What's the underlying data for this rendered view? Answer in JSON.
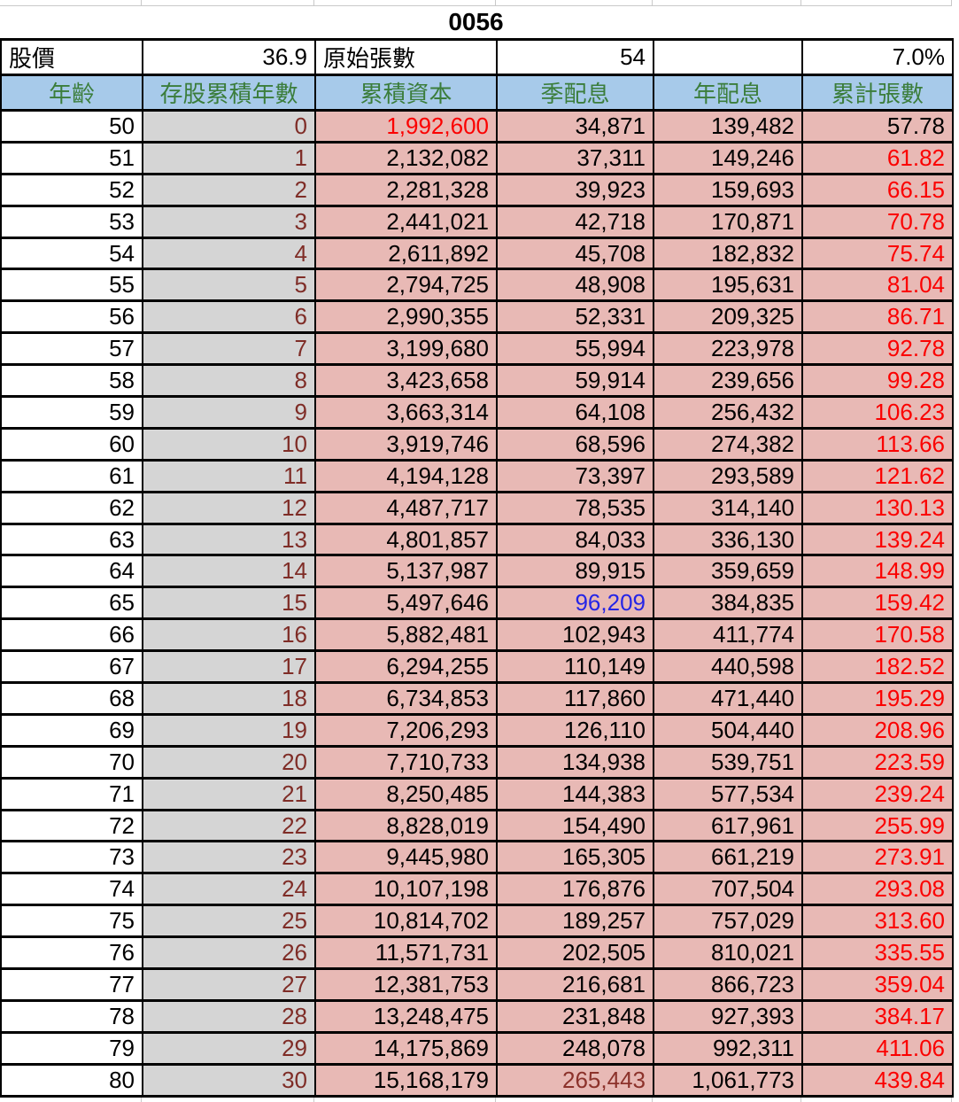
{
  "title": "0056",
  "info": {
    "price_label": "股價",
    "price_value": "36.9",
    "original_shares_label": "原始張數",
    "original_shares_value": "54",
    "blank": "",
    "yield_value": "7.0%"
  },
  "columns": [
    "年齡",
    "存股累積年數",
    "累積資本",
    "季配息",
    "年配息",
    "累計張數"
  ],
  "rows": [
    {
      "age": "50",
      "years": "0",
      "capital": "1,992,600",
      "quarterly": "34,871",
      "annual": "139,482",
      "shares": "57.78",
      "capital_color": "red",
      "shares_color": "black"
    },
    {
      "age": "51",
      "years": "1",
      "capital": "2,132,082",
      "quarterly": "37,311",
      "annual": "149,246",
      "shares": "61.82"
    },
    {
      "age": "52",
      "years": "2",
      "capital": "2,281,328",
      "quarterly": "39,923",
      "annual": "159,693",
      "shares": "66.15"
    },
    {
      "age": "53",
      "years": "3",
      "capital": "2,441,021",
      "quarterly": "42,718",
      "annual": "170,871",
      "shares": "70.78"
    },
    {
      "age": "54",
      "years": "4",
      "capital": "2,611,892",
      "quarterly": "45,708",
      "annual": "182,832",
      "shares": "75.74"
    },
    {
      "age": "55",
      "years": "5",
      "capital": "2,794,725",
      "quarterly": "48,908",
      "annual": "195,631",
      "shares": "81.04"
    },
    {
      "age": "56",
      "years": "6",
      "capital": "2,990,355",
      "quarterly": "52,331",
      "annual": "209,325",
      "shares": "86.71"
    },
    {
      "age": "57",
      "years": "7",
      "capital": "3,199,680",
      "quarterly": "55,994",
      "annual": "223,978",
      "shares": "92.78"
    },
    {
      "age": "58",
      "years": "8",
      "capital": "3,423,658",
      "quarterly": "59,914",
      "annual": "239,656",
      "shares": "99.28"
    },
    {
      "age": "59",
      "years": "9",
      "capital": "3,663,314",
      "quarterly": "64,108",
      "annual": "256,432",
      "shares": "106.23"
    },
    {
      "age": "60",
      "years": "10",
      "capital": "3,919,746",
      "quarterly": "68,596",
      "annual": "274,382",
      "shares": "113.66"
    },
    {
      "age": "61",
      "years": "11",
      "capital": "4,194,128",
      "quarterly": "73,397",
      "annual": "293,589",
      "shares": "121.62"
    },
    {
      "age": "62",
      "years": "12",
      "capital": "4,487,717",
      "quarterly": "78,535",
      "annual": "314,140",
      "shares": "130.13"
    },
    {
      "age": "63",
      "years": "13",
      "capital": "4,801,857",
      "quarterly": "84,033",
      "annual": "336,130",
      "shares": "139.24"
    },
    {
      "age": "64",
      "years": "14",
      "capital": "5,137,987",
      "quarterly": "89,915",
      "annual": "359,659",
      "shares": "148.99"
    },
    {
      "age": "65",
      "years": "15",
      "capital": "5,497,646",
      "quarterly": "96,209",
      "annual": "384,835",
      "shares": "159.42",
      "quarterly_color": "blue"
    },
    {
      "age": "66",
      "years": "16",
      "capital": "5,882,481",
      "quarterly": "102,943",
      "annual": "411,774",
      "shares": "170.58"
    },
    {
      "age": "67",
      "years": "17",
      "capital": "6,294,255",
      "quarterly": "110,149",
      "annual": "440,598",
      "shares": "182.52"
    },
    {
      "age": "68",
      "years": "18",
      "capital": "6,734,853",
      "quarterly": "117,860",
      "annual": "471,440",
      "shares": "195.29"
    },
    {
      "age": "69",
      "years": "19",
      "capital": "7,206,293",
      "quarterly": "126,110",
      "annual": "504,440",
      "shares": "208.96"
    },
    {
      "age": "70",
      "years": "20",
      "capital": "7,710,733",
      "quarterly": "134,938",
      "annual": "539,751",
      "shares": "223.59"
    },
    {
      "age": "71",
      "years": "21",
      "capital": "8,250,485",
      "quarterly": "144,383",
      "annual": "577,534",
      "shares": "239.24"
    },
    {
      "age": "72",
      "years": "22",
      "capital": "8,828,019",
      "quarterly": "154,490",
      "annual": "617,961",
      "shares": "255.99"
    },
    {
      "age": "73",
      "years": "23",
      "capital": "9,445,980",
      "quarterly": "165,305",
      "annual": "661,219",
      "shares": "273.91"
    },
    {
      "age": "74",
      "years": "24",
      "capital": "10,107,198",
      "quarterly": "176,876",
      "annual": "707,504",
      "shares": "293.08"
    },
    {
      "age": "75",
      "years": "25",
      "capital": "10,814,702",
      "quarterly": "189,257",
      "annual": "757,029",
      "shares": "313.60"
    },
    {
      "age": "76",
      "years": "26",
      "capital": "11,571,731",
      "quarterly": "202,505",
      "annual": "810,021",
      "shares": "335.55"
    },
    {
      "age": "77",
      "years": "27",
      "capital": "12,381,753",
      "quarterly": "216,681",
      "annual": "866,723",
      "shares": "359.04"
    },
    {
      "age": "78",
      "years": "28",
      "capital": "13,248,475",
      "quarterly": "231,848",
      "annual": "927,393",
      "shares": "384.17"
    },
    {
      "age": "79",
      "years": "29",
      "capital": "14,175,869",
      "quarterly": "248,078",
      "annual": "992,311",
      "shares": "411.06"
    },
    {
      "age": "80",
      "years": "30",
      "capital": "15,168,179",
      "quarterly": "265,443",
      "annual": "1,061,773",
      "shares": "439.84",
      "quarterly_color": "darkred"
    }
  ],
  "colors": {
    "header_bg": "#A7CAEA",
    "header_text": "#3B7D3B",
    "years_bg": "#D5D5D5",
    "years_text": "#7F2D27",
    "pink_bg": "#E8B9B5",
    "red": "#FB0000",
    "blue": "#2525E6",
    "darkred": "#8C322B",
    "black": "#000000",
    "grid_gray": "#C9C9C9"
  }
}
